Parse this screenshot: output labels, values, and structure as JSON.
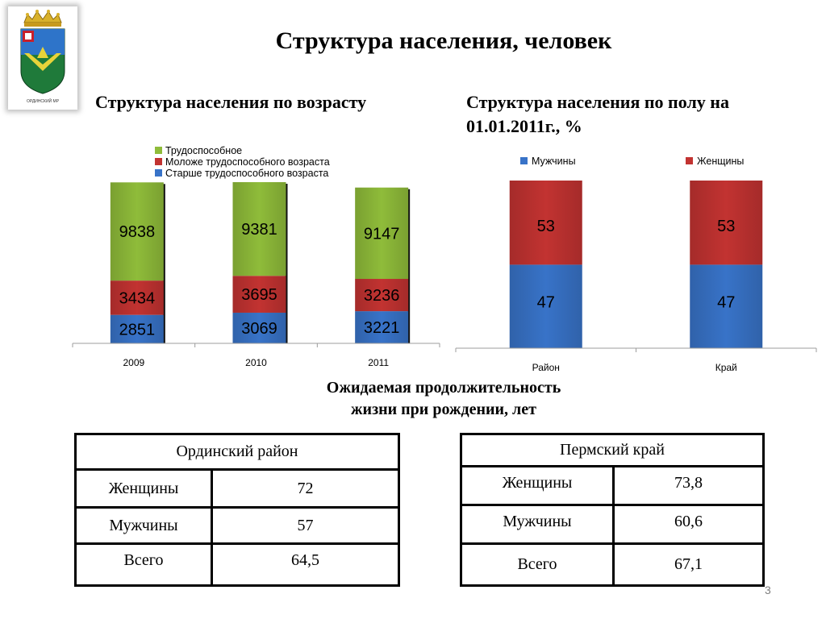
{
  "title": "Структура населения, человек",
  "logo_caption": "ОРДИНСКИЙ МР",
  "page_number": "3",
  "colors": {
    "green": "#8fbc3a",
    "red": "#c23331",
    "blue": "#3873c8"
  },
  "chart_data": [
    {
      "type": "bar",
      "stacked": true,
      "title": "Структура населения по возрасту",
      "categories": [
        "2009",
        "2010",
        "2011"
      ],
      "series": [
        {
          "name": "Старше трудоспособного возраста",
          "values": [
            2851,
            3069,
            3221
          ]
        },
        {
          "name": "Моложе трудоспособного возраста",
          "values": [
            3434,
            3695,
            3236
          ]
        },
        {
          "name": "Трудоспособное",
          "values": [
            9838,
            9381,
            9147
          ]
        }
      ],
      "legend": "top",
      "grid": false
    },
    {
      "type": "bar",
      "stacked": true,
      "title": "Структура населения по полу на 01.01.2011г., %",
      "categories": [
        "Район",
        "Край"
      ],
      "series": [
        {
          "name": "Мужчины",
          "values": [
            47,
            47
          ]
        },
        {
          "name": "Женщины",
          "values": [
            53,
            53
          ]
        }
      ],
      "ylim": [
        0,
        100
      ],
      "legend": "top",
      "grid": false
    }
  ],
  "life": {
    "title_line1": "Ожидаемая продолжительность",
    "title_line2": "жизни при рождении, лет",
    "tables": [
      {
        "header": "Ординский район",
        "rows": [
          {
            "label": "Женщины",
            "value": "72"
          },
          {
            "label": "Мужчины",
            "value": "57"
          },
          {
            "label": "Всего",
            "value": "64,5"
          }
        ]
      },
      {
        "header": "Пермский край",
        "rows": [
          {
            "label": "Женщины",
            "value": "73,8"
          },
          {
            "label": "Мужчины",
            "value": "60,6"
          },
          {
            "label": "Всего",
            "value": "67,1"
          }
        ]
      }
    ]
  }
}
